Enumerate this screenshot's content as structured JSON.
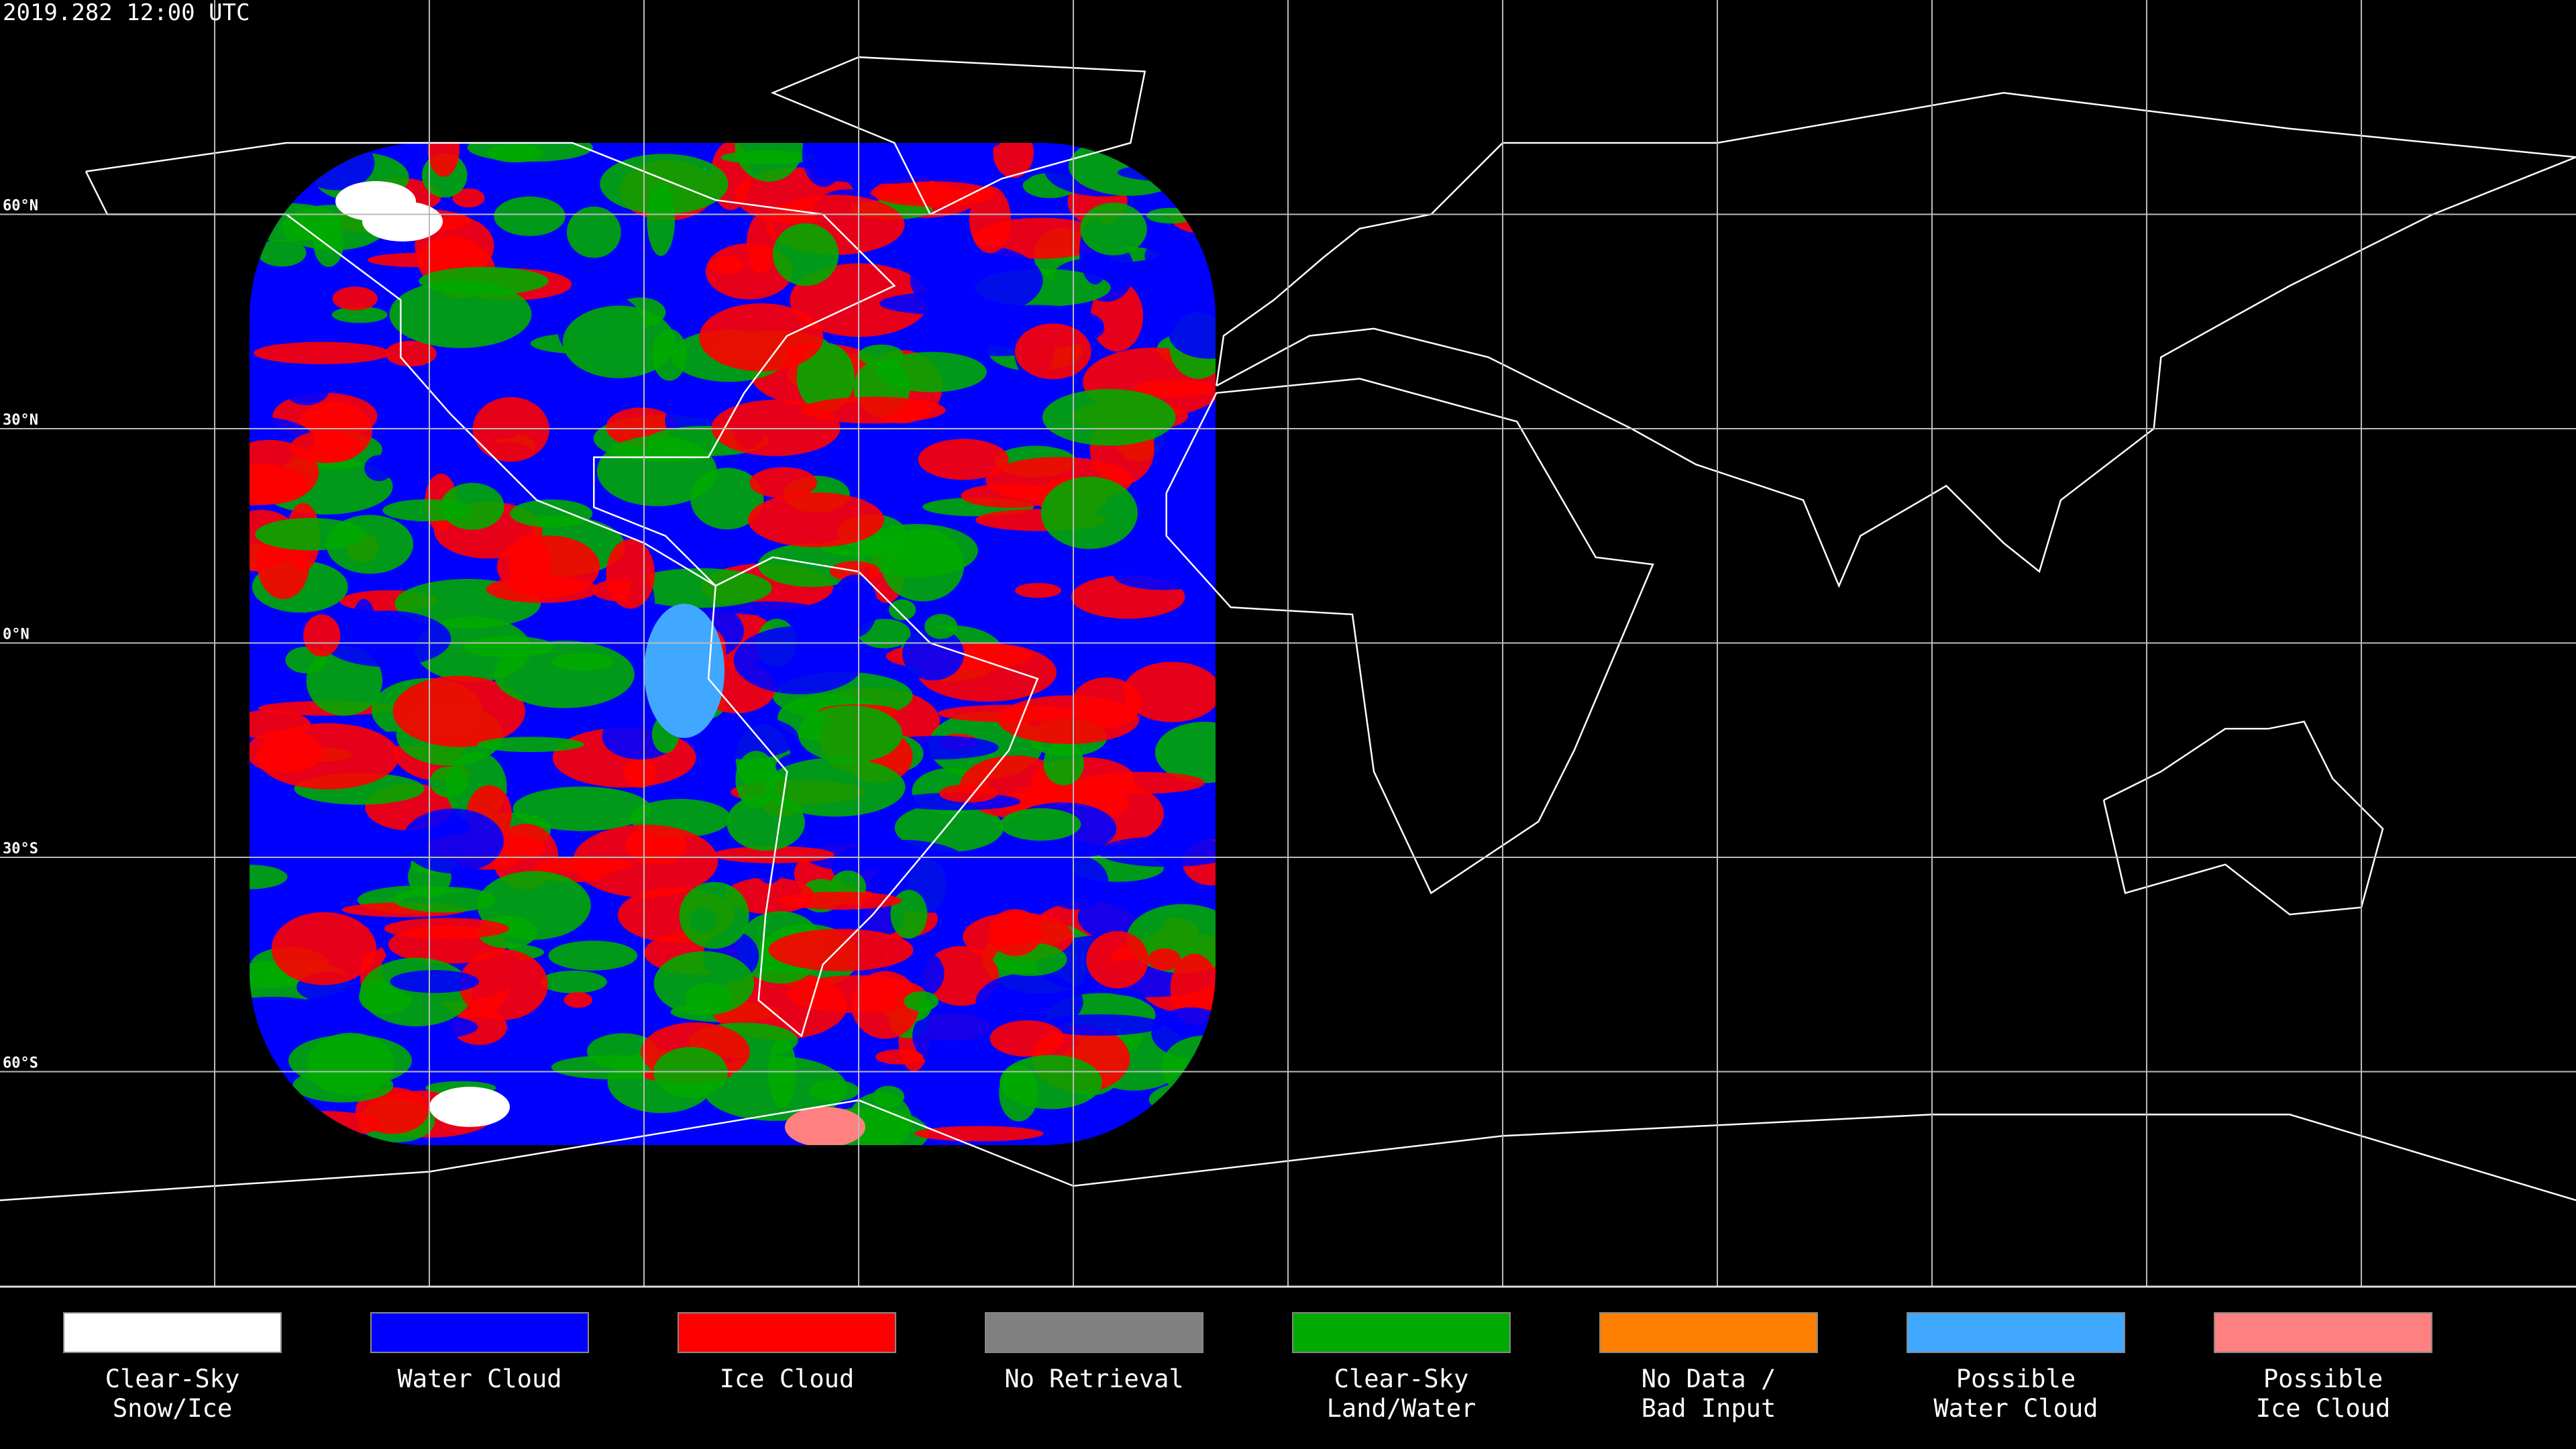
{
  "header": {
    "timestamp": "2019.282 12:00 UTC"
  },
  "latitude_labels": [
    "60°N",
    "30°N",
    "0°N",
    "30°S",
    "60°S"
  ],
  "legend": [
    {
      "label": [
        "Clear-Sky",
        "Snow/Ice"
      ],
      "color": "#ffffff"
    },
    {
      "label": [
        "Water Cloud"
      ],
      "color": "#0000ff"
    },
    {
      "label": [
        "Ice Cloud"
      ],
      "color": "#ff0000"
    },
    {
      "label": [
        "No Retrieval"
      ],
      "color": "#808080"
    },
    {
      "label": [
        "Clear-Sky",
        "Land/Water"
      ],
      "color": "#00aa00"
    },
    {
      "label": [
        "No Data /",
        "Bad Input"
      ],
      "color": "#ff8000"
    },
    {
      "label": [
        "Possible",
        "Water Cloud"
      ],
      "color": "#40a8ff"
    },
    {
      "label": [
        "Possible",
        "Ice Cloud"
      ],
      "color": "#ff8080"
    }
  ]
}
